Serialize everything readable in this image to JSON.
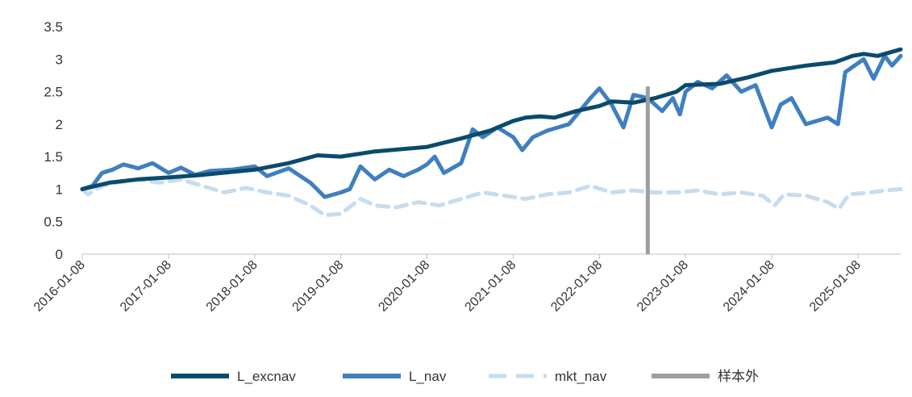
{
  "chart_data": {
    "type": "line",
    "title": "",
    "xlabel": "",
    "ylabel": "",
    "ylim": [
      0,
      3.5
    ],
    "yticks": [
      "0",
      "0.5",
      "1",
      "1.5",
      "2",
      "2.5",
      "3",
      "3.5"
    ],
    "xlim": [
      "2016-01-08",
      "2025-07-08"
    ],
    "xticks": [
      "2016-01-08",
      "2017-01-08",
      "2018-01-08",
      "2019-01-08",
      "2020-01-08",
      "2021-01-08",
      "2022-01-08",
      "2023-01-08",
      "2024-01-08",
      "2025-01-08"
    ],
    "grid": false,
    "legend_position": "bottom",
    "series": [
      {
        "name": "L_excnav",
        "color": "#0b4a6b",
        "style": "solid",
        "points": [
          [
            "2016-01-08",
            1.0
          ],
          [
            "2016-05-01",
            1.1
          ],
          [
            "2016-09-01",
            1.15
          ],
          [
            "2017-01-08",
            1.18
          ],
          [
            "2017-06-01",
            1.22
          ],
          [
            "2018-01-08",
            1.3
          ],
          [
            "2018-06-01",
            1.4
          ],
          [
            "2018-10-01",
            1.52
          ],
          [
            "2019-01-08",
            1.5
          ],
          [
            "2019-06-01",
            1.58
          ],
          [
            "2020-01-08",
            1.65
          ],
          [
            "2020-06-01",
            1.78
          ],
          [
            "2020-10-01",
            1.9
          ],
          [
            "2021-01-08",
            2.05
          ],
          [
            "2021-03-01",
            2.1
          ],
          [
            "2021-05-01",
            2.12
          ],
          [
            "2021-07-01",
            2.1
          ],
          [
            "2021-10-01",
            2.2
          ],
          [
            "2022-01-08",
            2.28
          ],
          [
            "2022-03-01",
            2.35
          ],
          [
            "2022-06-01",
            2.33
          ],
          [
            "2022-09-01",
            2.4
          ],
          [
            "2022-12-01",
            2.5
          ],
          [
            "2023-01-08",
            2.6
          ],
          [
            "2023-06-01",
            2.62
          ],
          [
            "2023-10-01",
            2.72
          ],
          [
            "2024-01-08",
            2.82
          ],
          [
            "2024-06-01",
            2.9
          ],
          [
            "2024-10-01",
            2.95
          ],
          [
            "2024-12-15",
            3.05
          ],
          [
            "2025-02-01",
            3.08
          ],
          [
            "2025-04-01",
            3.05
          ],
          [
            "2025-07-08",
            3.15
          ]
        ]
      },
      {
        "name": "L_nav",
        "color": "#3f7fc0",
        "style": "solid",
        "points": [
          [
            "2016-01-08",
            1.0
          ],
          [
            "2016-02-20",
            1.05
          ],
          [
            "2016-04-01",
            1.25
          ],
          [
            "2016-05-15",
            1.3
          ],
          [
            "2016-07-01",
            1.38
          ],
          [
            "2016-09-01",
            1.32
          ],
          [
            "2016-11-01",
            1.4
          ],
          [
            "2017-01-08",
            1.25
          ],
          [
            "2017-03-01",
            1.33
          ],
          [
            "2017-05-01",
            1.22
          ],
          [
            "2017-07-01",
            1.28
          ],
          [
            "2017-10-01",
            1.3
          ],
          [
            "2018-01-08",
            1.35
          ],
          [
            "2018-03-01",
            1.2
          ],
          [
            "2018-06-01",
            1.32
          ],
          [
            "2018-09-01",
            1.1
          ],
          [
            "2018-11-01",
            0.88
          ],
          [
            "2019-01-08",
            0.95
          ],
          [
            "2019-02-15",
            1.0
          ],
          [
            "2019-04-01",
            1.35
          ],
          [
            "2019-06-01",
            1.15
          ],
          [
            "2019-08-01",
            1.3
          ],
          [
            "2019-10-01",
            1.2
          ],
          [
            "2019-12-01",
            1.3
          ],
          [
            "2020-01-08",
            1.38
          ],
          [
            "2020-02-10",
            1.5
          ],
          [
            "2020-03-20",
            1.25
          ],
          [
            "2020-06-01",
            1.4
          ],
          [
            "2020-07-20",
            1.92
          ],
          [
            "2020-09-01",
            1.8
          ],
          [
            "2020-11-01",
            1.95
          ],
          [
            "2021-01-08",
            1.8
          ],
          [
            "2021-02-15",
            1.6
          ],
          [
            "2021-04-01",
            1.8
          ],
          [
            "2021-06-01",
            1.9
          ],
          [
            "2021-09-01",
            2.0
          ],
          [
            "2021-12-01",
            2.4
          ],
          [
            "2022-01-08",
            2.55
          ],
          [
            "2022-03-01",
            2.3
          ],
          [
            "2022-04-20",
            1.95
          ],
          [
            "2022-06-01",
            2.45
          ],
          [
            "2022-08-01",
            2.4
          ],
          [
            "2022-10-01",
            2.2
          ],
          [
            "2022-11-15",
            2.4
          ],
          [
            "2022-12-15",
            2.15
          ],
          [
            "2023-01-08",
            2.5
          ],
          [
            "2023-03-01",
            2.65
          ],
          [
            "2023-05-01",
            2.55
          ],
          [
            "2023-07-01",
            2.75
          ],
          [
            "2023-09-01",
            2.5
          ],
          [
            "2023-11-01",
            2.6
          ],
          [
            "2024-01-08",
            1.95
          ],
          [
            "2024-02-15",
            2.3
          ],
          [
            "2024-04-01",
            2.4
          ],
          [
            "2024-06-01",
            2.0
          ],
          [
            "2024-09-01",
            2.1
          ],
          [
            "2024-10-15",
            2.0
          ],
          [
            "2024-11-15",
            2.8
          ],
          [
            "2025-02-01",
            3.0
          ],
          [
            "2025-03-15",
            2.7
          ],
          [
            "2025-05-01",
            3.05
          ],
          [
            "2025-06-01",
            2.9
          ],
          [
            "2025-07-08",
            3.05
          ]
        ]
      },
      {
        "name": "mkt_nav",
        "color": "#c6dcef",
        "style": "dashed",
        "points": [
          [
            "2016-01-08",
            1.0
          ],
          [
            "2016-02-01",
            0.92
          ],
          [
            "2016-04-01",
            1.05
          ],
          [
            "2016-06-01",
            1.1
          ],
          [
            "2016-09-01",
            1.15
          ],
          [
            "2016-12-01",
            1.1
          ],
          [
            "2017-03-01",
            1.15
          ],
          [
            "2017-06-01",
            1.05
          ],
          [
            "2017-09-01",
            0.95
          ],
          [
            "2017-12-01",
            1.02
          ],
          [
            "2018-03-01",
            0.95
          ],
          [
            "2018-06-01",
            0.9
          ],
          [
            "2018-09-01",
            0.75
          ],
          [
            "2018-11-01",
            0.6
          ],
          [
            "2019-01-08",
            0.62
          ],
          [
            "2019-04-01",
            0.85
          ],
          [
            "2019-06-01",
            0.75
          ],
          [
            "2019-09-01",
            0.72
          ],
          [
            "2019-12-01",
            0.8
          ],
          [
            "2020-03-01",
            0.75
          ],
          [
            "2020-06-01",
            0.85
          ],
          [
            "2020-09-01",
            0.95
          ],
          [
            "2020-12-01",
            0.9
          ],
          [
            "2021-03-01",
            0.85
          ],
          [
            "2021-06-01",
            0.92
          ],
          [
            "2021-09-01",
            0.95
          ],
          [
            "2021-12-01",
            1.05
          ],
          [
            "2022-03-01",
            0.95
          ],
          [
            "2022-06-01",
            0.98
          ],
          [
            "2022-09-01",
            0.95
          ],
          [
            "2022-12-01",
            0.95
          ],
          [
            "2023-03-01",
            0.98
          ],
          [
            "2023-06-01",
            0.92
          ],
          [
            "2023-09-01",
            0.95
          ],
          [
            "2023-12-01",
            0.9
          ],
          [
            "2024-01-20",
            0.75
          ],
          [
            "2024-03-01",
            0.92
          ],
          [
            "2024-06-01",
            0.9
          ],
          [
            "2024-09-01",
            0.8
          ],
          [
            "2024-10-20",
            0.7
          ],
          [
            "2024-12-01",
            0.92
          ],
          [
            "2025-03-01",
            0.95
          ],
          [
            "2025-05-01",
            0.98
          ],
          [
            "2025-07-08",
            1.0
          ]
        ]
      },
      {
        "name": "样本外",
        "color": "#9e9e9e",
        "style": "vertical-marker",
        "x": "2022-08-01",
        "y_range": [
          0,
          2.58
        ]
      }
    ]
  }
}
